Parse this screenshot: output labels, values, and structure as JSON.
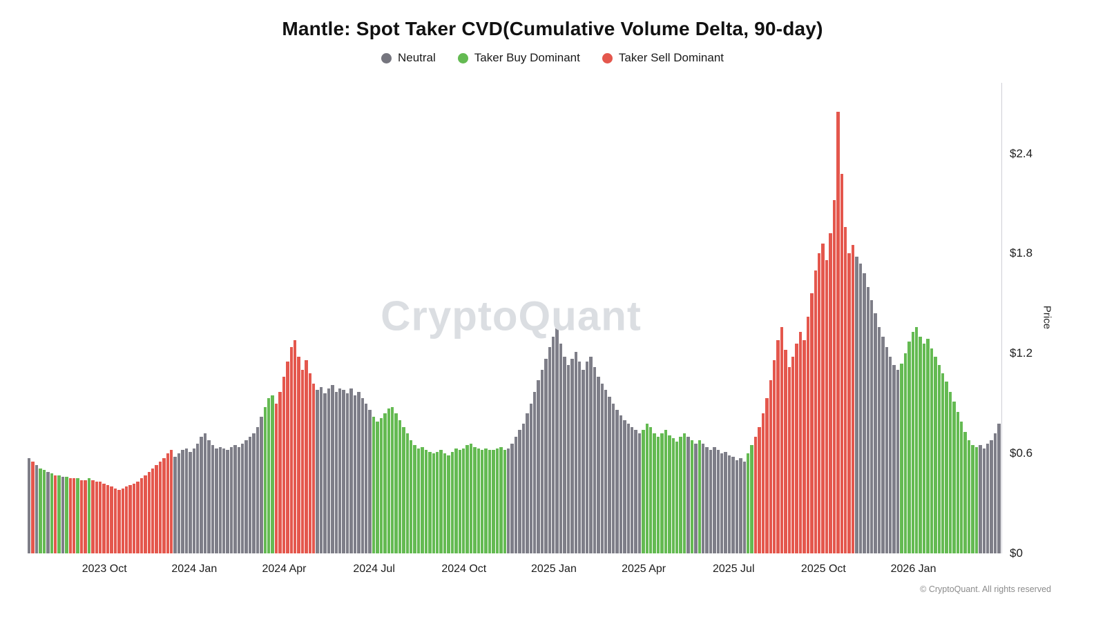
{
  "title": "Mantle: Spot Taker CVD(Cumulative Volume Delta, 90-day)",
  "watermark": "CryptoQuant",
  "footer": "© CryptoQuant. All rights reserved",
  "colors": {
    "n": "#7e7e88",
    "b": "#64ba52",
    "s": "#e4574d"
  },
  "legend": [
    {
      "label": "Neutral",
      "color": "#75757e",
      "key": "n"
    },
    {
      "label": "Taker Buy Dominant",
      "color": "#64ba52",
      "key": "b"
    },
    {
      "label": "Taker Sell Dominant",
      "color": "#e4574d",
      "key": "s"
    }
  ],
  "chart_data": {
    "type": "bar",
    "title": "Mantle: Spot Taker CVD(Cumulative Volume Delta, 90-day)",
    "xlabel": "",
    "ylabel": "Price",
    "ylim": [
      0,
      2.825
    ],
    "grid": false,
    "legend_position": "top",
    "y_ticks": [
      {
        "label": "$0",
        "value": 0
      },
      {
        "label": "$0.6",
        "value": 0.6
      },
      {
        "label": "$1.2",
        "value": 1.2
      },
      {
        "label": "$1.8",
        "value": 1.8
      },
      {
        "label": "$2.4",
        "value": 2.4
      }
    ],
    "x_ticks": [
      {
        "label": "2023 Oct",
        "index": 20
      },
      {
        "label": "2024 Jan",
        "index": 44
      },
      {
        "label": "2024 Apr",
        "index": 68
      },
      {
        "label": "2024 Jul",
        "index": 92
      },
      {
        "label": "2024 Oct",
        "index": 116
      },
      {
        "label": "2025 Jan",
        "index": 140
      },
      {
        "label": "2025 Apr",
        "index": 164
      },
      {
        "label": "2025 Jul",
        "index": 188
      },
      {
        "label": "2025 Oct",
        "index": 212
      },
      {
        "label": "2026 Jan",
        "index": 236
      }
    ],
    "categories": {
      "n": "Neutral",
      "b": "Taker Buy Dominant",
      "s": "Taker Sell Dominant"
    },
    "points": [
      [
        0.57,
        "n"
      ],
      [
        0.55,
        "s"
      ],
      [
        0.53,
        "n"
      ],
      [
        0.51,
        "b"
      ],
      [
        0.5,
        "b"
      ],
      [
        0.49,
        "n"
      ],
      [
        0.48,
        "b"
      ],
      [
        0.47,
        "s"
      ],
      [
        0.47,
        "b"
      ],
      [
        0.46,
        "n"
      ],
      [
        0.46,
        "b"
      ],
      [
        0.45,
        "s"
      ],
      [
        0.45,
        "s"
      ],
      [
        0.45,
        "b"
      ],
      [
        0.44,
        "s"
      ],
      [
        0.44,
        "s"
      ],
      [
        0.45,
        "b"
      ],
      [
        0.44,
        "s"
      ],
      [
        0.43,
        "s"
      ],
      [
        0.43,
        "s"
      ],
      [
        0.42,
        "s"
      ],
      [
        0.41,
        "s"
      ],
      [
        0.4,
        "s"
      ],
      [
        0.39,
        "s"
      ],
      [
        0.38,
        "s"
      ],
      [
        0.39,
        "s"
      ],
      [
        0.4,
        "s"
      ],
      [
        0.41,
        "s"
      ],
      [
        0.42,
        "s"
      ],
      [
        0.43,
        "s"
      ],
      [
        0.45,
        "s"
      ],
      [
        0.47,
        "s"
      ],
      [
        0.49,
        "s"
      ],
      [
        0.51,
        "s"
      ],
      [
        0.53,
        "s"
      ],
      [
        0.55,
        "s"
      ],
      [
        0.57,
        "s"
      ],
      [
        0.6,
        "s"
      ],
      [
        0.62,
        "s"
      ],
      [
        0.58,
        "n"
      ],
      [
        0.6,
        "n"
      ],
      [
        0.62,
        "n"
      ],
      [
        0.63,
        "n"
      ],
      [
        0.61,
        "n"
      ],
      [
        0.63,
        "n"
      ],
      [
        0.66,
        "n"
      ],
      [
        0.7,
        "n"
      ],
      [
        0.72,
        "n"
      ],
      [
        0.68,
        "n"
      ],
      [
        0.65,
        "n"
      ],
      [
        0.63,
        "n"
      ],
      [
        0.64,
        "n"
      ],
      [
        0.63,
        "n"
      ],
      [
        0.62,
        "n"
      ],
      [
        0.64,
        "n"
      ],
      [
        0.65,
        "n"
      ],
      [
        0.64,
        "n"
      ],
      [
        0.66,
        "n"
      ],
      [
        0.68,
        "n"
      ],
      [
        0.7,
        "n"
      ],
      [
        0.72,
        "n"
      ],
      [
        0.76,
        "n"
      ],
      [
        0.82,
        "n"
      ],
      [
        0.88,
        "b"
      ],
      [
        0.93,
        "b"
      ],
      [
        0.95,
        "b"
      ],
      [
        0.9,
        "s"
      ],
      [
        0.97,
        "s"
      ],
      [
        1.06,
        "s"
      ],
      [
        1.15,
        "s"
      ],
      [
        1.24,
        "s"
      ],
      [
        1.28,
        "s"
      ],
      [
        1.18,
        "s"
      ],
      [
        1.1,
        "s"
      ],
      [
        1.16,
        "s"
      ],
      [
        1.08,
        "s"
      ],
      [
        1.02,
        "s"
      ],
      [
        0.98,
        "n"
      ],
      [
        1.0,
        "n"
      ],
      [
        0.96,
        "n"
      ],
      [
        0.99,
        "n"
      ],
      [
        1.01,
        "n"
      ],
      [
        0.97,
        "n"
      ],
      [
        0.99,
        "n"
      ],
      [
        0.98,
        "n"
      ],
      [
        0.96,
        "n"
      ],
      [
        0.99,
        "n"
      ],
      [
        0.95,
        "n"
      ],
      [
        0.97,
        "n"
      ],
      [
        0.93,
        "n"
      ],
      [
        0.9,
        "n"
      ],
      [
        0.86,
        "n"
      ],
      [
        0.82,
        "b"
      ],
      [
        0.79,
        "b"
      ],
      [
        0.81,
        "b"
      ],
      [
        0.84,
        "b"
      ],
      [
        0.87,
        "b"
      ],
      [
        0.88,
        "b"
      ],
      [
        0.84,
        "b"
      ],
      [
        0.8,
        "b"
      ],
      [
        0.76,
        "b"
      ],
      [
        0.72,
        "b"
      ],
      [
        0.68,
        "b"
      ],
      [
        0.65,
        "b"
      ],
      [
        0.63,
        "b"
      ],
      [
        0.64,
        "b"
      ],
      [
        0.62,
        "b"
      ],
      [
        0.61,
        "b"
      ],
      [
        0.6,
        "b"
      ],
      [
        0.61,
        "b"
      ],
      [
        0.62,
        "b"
      ],
      [
        0.6,
        "b"
      ],
      [
        0.59,
        "b"
      ],
      [
        0.61,
        "b"
      ],
      [
        0.63,
        "b"
      ],
      [
        0.62,
        "b"
      ],
      [
        0.63,
        "b"
      ],
      [
        0.65,
        "b"
      ],
      [
        0.66,
        "b"
      ],
      [
        0.64,
        "b"
      ],
      [
        0.63,
        "b"
      ],
      [
        0.62,
        "b"
      ],
      [
        0.63,
        "b"
      ],
      [
        0.62,
        "b"
      ],
      [
        0.62,
        "b"
      ],
      [
        0.63,
        "b"
      ],
      [
        0.64,
        "b"
      ],
      [
        0.62,
        "b"
      ],
      [
        0.63,
        "n"
      ],
      [
        0.66,
        "n"
      ],
      [
        0.7,
        "n"
      ],
      [
        0.74,
        "n"
      ],
      [
        0.78,
        "n"
      ],
      [
        0.84,
        "n"
      ],
      [
        0.9,
        "n"
      ],
      [
        0.97,
        "n"
      ],
      [
        1.04,
        "n"
      ],
      [
        1.1,
        "n"
      ],
      [
        1.17,
        "n"
      ],
      [
        1.24,
        "n"
      ],
      [
        1.3,
        "n"
      ],
      [
        1.35,
        "n"
      ],
      [
        1.26,
        "n"
      ],
      [
        1.18,
        "n"
      ],
      [
        1.13,
        "n"
      ],
      [
        1.17,
        "n"
      ],
      [
        1.21,
        "n"
      ],
      [
        1.15,
        "n"
      ],
      [
        1.1,
        "n"
      ],
      [
        1.15,
        "n"
      ],
      [
        1.18,
        "n"
      ],
      [
        1.12,
        "n"
      ],
      [
        1.06,
        "n"
      ],
      [
        1.02,
        "n"
      ],
      [
        0.98,
        "n"
      ],
      [
        0.94,
        "n"
      ],
      [
        0.9,
        "n"
      ],
      [
        0.86,
        "n"
      ],
      [
        0.83,
        "n"
      ],
      [
        0.8,
        "n"
      ],
      [
        0.78,
        "n"
      ],
      [
        0.76,
        "n"
      ],
      [
        0.74,
        "n"
      ],
      [
        0.72,
        "n"
      ],
      [
        0.74,
        "b"
      ],
      [
        0.78,
        "b"
      ],
      [
        0.76,
        "b"
      ],
      [
        0.72,
        "b"
      ],
      [
        0.7,
        "b"
      ],
      [
        0.72,
        "b"
      ],
      [
        0.74,
        "b"
      ],
      [
        0.71,
        "b"
      ],
      [
        0.69,
        "b"
      ],
      [
        0.67,
        "b"
      ],
      [
        0.7,
        "b"
      ],
      [
        0.72,
        "b"
      ],
      [
        0.7,
        "n"
      ],
      [
        0.68,
        "b"
      ],
      [
        0.66,
        "n"
      ],
      [
        0.68,
        "b"
      ],
      [
        0.66,
        "n"
      ],
      [
        0.64,
        "n"
      ],
      [
        0.62,
        "n"
      ],
      [
        0.64,
        "n"
      ],
      [
        0.62,
        "n"
      ],
      [
        0.6,
        "n"
      ],
      [
        0.61,
        "n"
      ],
      [
        0.59,
        "n"
      ],
      [
        0.58,
        "n"
      ],
      [
        0.56,
        "n"
      ],
      [
        0.57,
        "n"
      ],
      [
        0.55,
        "n"
      ],
      [
        0.6,
        "b"
      ],
      [
        0.65,
        "b"
      ],
      [
        0.7,
        "s"
      ],
      [
        0.76,
        "s"
      ],
      [
        0.84,
        "s"
      ],
      [
        0.93,
        "s"
      ],
      [
        1.04,
        "s"
      ],
      [
        1.16,
        "s"
      ],
      [
        1.28,
        "s"
      ],
      [
        1.36,
        "s"
      ],
      [
        1.22,
        "s"
      ],
      [
        1.12,
        "s"
      ],
      [
        1.18,
        "s"
      ],
      [
        1.26,
        "s"
      ],
      [
        1.33,
        "s"
      ],
      [
        1.28,
        "s"
      ],
      [
        1.42,
        "s"
      ],
      [
        1.56,
        "s"
      ],
      [
        1.7,
        "s"
      ],
      [
        1.8,
        "s"
      ],
      [
        1.86,
        "s"
      ],
      [
        1.76,
        "s"
      ],
      [
        1.92,
        "s"
      ],
      [
        2.12,
        "s"
      ],
      [
        2.65,
        "s"
      ],
      [
        2.28,
        "s"
      ],
      [
        1.96,
        "s"
      ],
      [
        1.8,
        "s"
      ],
      [
        1.85,
        "s"
      ],
      [
        1.78,
        "n"
      ],
      [
        1.74,
        "n"
      ],
      [
        1.68,
        "n"
      ],
      [
        1.6,
        "n"
      ],
      [
        1.52,
        "n"
      ],
      [
        1.44,
        "n"
      ],
      [
        1.36,
        "n"
      ],
      [
        1.3,
        "n"
      ],
      [
        1.24,
        "n"
      ],
      [
        1.18,
        "n"
      ],
      [
        1.13,
        "n"
      ],
      [
        1.1,
        "n"
      ],
      [
        1.14,
        "b"
      ],
      [
        1.2,
        "b"
      ],
      [
        1.27,
        "b"
      ],
      [
        1.33,
        "b"
      ],
      [
        1.36,
        "b"
      ],
      [
        1.3,
        "b"
      ],
      [
        1.26,
        "b"
      ],
      [
        1.29,
        "b"
      ],
      [
        1.23,
        "b"
      ],
      [
        1.18,
        "b"
      ],
      [
        1.13,
        "b"
      ],
      [
        1.08,
        "b"
      ],
      [
        1.03,
        "b"
      ],
      [
        0.97,
        "b"
      ],
      [
        0.91,
        "b"
      ],
      [
        0.85,
        "b"
      ],
      [
        0.79,
        "b"
      ],
      [
        0.73,
        "b"
      ],
      [
        0.68,
        "b"
      ],
      [
        0.65,
        "b"
      ],
      [
        0.64,
        "b"
      ],
      [
        0.65,
        "n"
      ],
      [
        0.63,
        "n"
      ],
      [
        0.66,
        "n"
      ],
      [
        0.68,
        "n"
      ],
      [
        0.72,
        "n"
      ],
      [
        0.78,
        "n"
      ]
    ]
  }
}
